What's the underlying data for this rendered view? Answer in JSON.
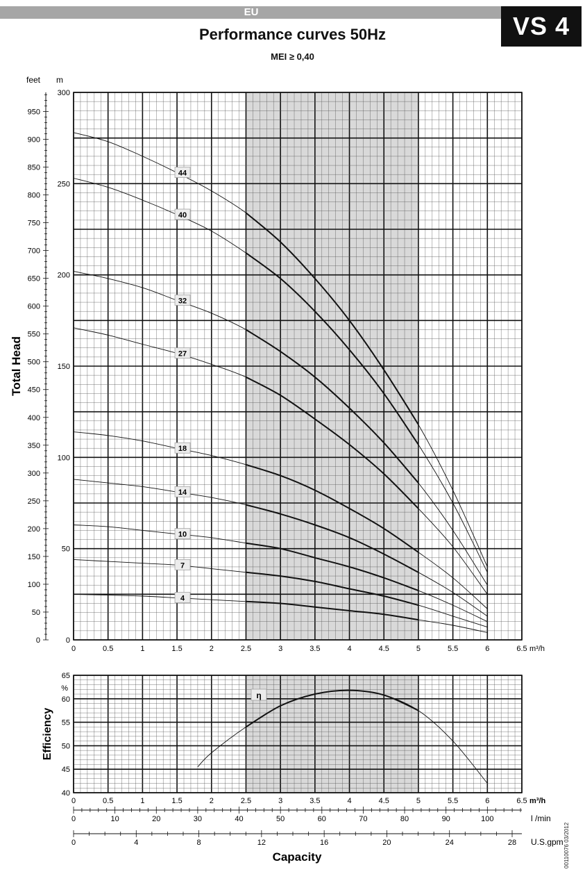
{
  "header": {
    "region": "EU",
    "model": "VS 4",
    "title": "Performance curves 50Hz",
    "mei": "MEI ≥ 0,40"
  },
  "doc_code": "00110076  03/2012",
  "colors": {
    "shade": "#d9d9d9",
    "grid_major": "#111111",
    "grid_minor": "#555555",
    "badge": "#111111",
    "eu_bar": "#a6a6a6"
  },
  "chart_data": [
    {
      "type": "line",
      "name": "head",
      "ylabel": "Total Head",
      "unit_left": "feet",
      "unit_right": "m",
      "x_unit": "m³/h",
      "xlim": [
        0,
        6.5
      ],
      "ylim": [
        0,
        300
      ],
      "feet_lim": [
        0,
        984.25
      ],
      "x_ticks": [
        "0",
        "0.5",
        "1",
        "1.5",
        "2",
        "2.5",
        "3",
        "3.5",
        "4",
        "4.5",
        "5",
        "5.5",
        "6",
        "6.5"
      ],
      "m_ticks": [
        "0",
        "50",
        "100",
        "150",
        "200",
        "250",
        "300"
      ],
      "feet_ticks": [
        "0",
        "50",
        "100",
        "150",
        "200",
        "250",
        "300",
        "350",
        "400",
        "450",
        "500",
        "550",
        "600",
        "650",
        "700",
        "750",
        "800",
        "850",
        "900",
        "950"
      ],
      "shaded_range": [
        2.5,
        5
      ],
      "series": [
        {
          "name": "44",
          "x": [
            0,
            0.5,
            1,
            1.5,
            2,
            2.5,
            3,
            3.5,
            4,
            4.5,
            5,
            5.5,
            6
          ],
          "y": [
            278,
            273,
            265,
            256,
            246,
            234,
            218,
            198,
            175,
            148,
            118,
            82,
            40
          ]
        },
        {
          "name": "40",
          "x": [
            0,
            0.5,
            1,
            1.5,
            2,
            2.5,
            3,
            3.5,
            4,
            4.5,
            5,
            5.5,
            6
          ],
          "y": [
            253,
            248,
            241,
            233,
            224,
            212,
            198,
            180,
            159,
            135,
            107,
            75,
            37
          ]
        },
        {
          "name": "32",
          "x": [
            0,
            0.5,
            1,
            1.5,
            2,
            2.5,
            3,
            3.5,
            4,
            4.5,
            5,
            5.5,
            6
          ],
          "y": [
            202,
            198,
            193,
            186,
            179,
            170,
            158,
            144,
            127,
            108,
            86,
            60,
            30
          ]
        },
        {
          "name": "27",
          "x": [
            0,
            0.5,
            1,
            1.5,
            2,
            2.5,
            3,
            3.5,
            4,
            4.5,
            5,
            5.5,
            6
          ],
          "y": [
            171,
            167,
            162,
            157,
            151,
            144,
            134,
            121,
            107,
            91,
            72,
            51,
            25
          ]
        },
        {
          "name": "18",
          "x": [
            0,
            0.5,
            1,
            1.5,
            2,
            2.5,
            3,
            3.5,
            4,
            4.5,
            5,
            5.5,
            6
          ],
          "y": [
            114,
            112,
            109,
            105,
            101,
            96,
            90,
            82,
            72,
            61,
            48,
            34,
            17
          ]
        },
        {
          "name": "14",
          "x": [
            0,
            0.5,
            1,
            1.5,
            2,
            2.5,
            3,
            3.5,
            4,
            4.5,
            5,
            5.5,
            6
          ],
          "y": [
            88,
            86,
            84,
            81,
            78,
            74,
            69,
            63,
            56,
            47,
            37,
            26,
            13
          ]
        },
        {
          "name": "10",
          "x": [
            0,
            0.5,
            1,
            1.5,
            2,
            2.5,
            3,
            3.5,
            4,
            4.5,
            5,
            5.5,
            6
          ],
          "y": [
            63,
            62,
            60,
            58,
            56,
            53,
            50,
            45,
            40,
            34,
            27,
            19,
            10
          ]
        },
        {
          "name": "7",
          "x": [
            0,
            0.5,
            1,
            1.5,
            2,
            2.5,
            3,
            3.5,
            4,
            4.5,
            5,
            5.5,
            6
          ],
          "y": [
            44,
            43,
            42,
            41,
            39,
            37,
            35,
            32,
            28,
            24,
            19,
            13,
            7
          ]
        },
        {
          "name": "4",
          "x": [
            0,
            0.5,
            1,
            1.5,
            2,
            2.5,
            3,
            3.5,
            4,
            4.5,
            5,
            5.5,
            6
          ],
          "y": [
            25,
            24.5,
            24,
            23,
            22,
            21,
            20,
            18,
            16,
            14,
            11,
            8,
            4
          ]
        }
      ],
      "grid": true
    },
    {
      "type": "line",
      "name": "efficiency",
      "ylabel": "Efficiency",
      "unit": "%",
      "x_unit": "m³/h",
      "xlim": [
        0,
        6.5
      ],
      "ylim": [
        40,
        65
      ],
      "y_ticks": [
        "40",
        "45",
        "50",
        "55",
        "60",
        "65"
      ],
      "x_ticks": [
        "0",
        "0.5",
        "1",
        "1.5",
        "2",
        "2.5",
        "3",
        "3.5",
        "4",
        "4.5",
        "5",
        "5.5",
        "6",
        "6.5"
      ],
      "shaded_range": [
        2.5,
        5
      ],
      "series": [
        {
          "name": "η",
          "x": [
            1.8,
            2,
            2.5,
            3,
            3.5,
            4,
            4.5,
            5,
            5.5,
            6
          ],
          "y": [
            45.5,
            48.5,
            54,
            58.5,
            61,
            61.8,
            60.8,
            57.5,
            51,
            42
          ]
        }
      ],
      "grid": true
    }
  ],
  "capacity_axes": {
    "title": "Capacity",
    "lmin": {
      "unit": "l /min",
      "lim": [
        0,
        108.33
      ],
      "ticks": [
        "0",
        "10",
        "20",
        "30",
        "40",
        "50",
        "60",
        "70",
        "80",
        "90",
        "100"
      ]
    },
    "usgpm": {
      "unit": "U.S.gpm",
      "lim": [
        0,
        28.62
      ],
      "ticks": [
        "0",
        "4",
        "8",
        "12",
        "16",
        "20",
        "24",
        "28"
      ]
    }
  }
}
